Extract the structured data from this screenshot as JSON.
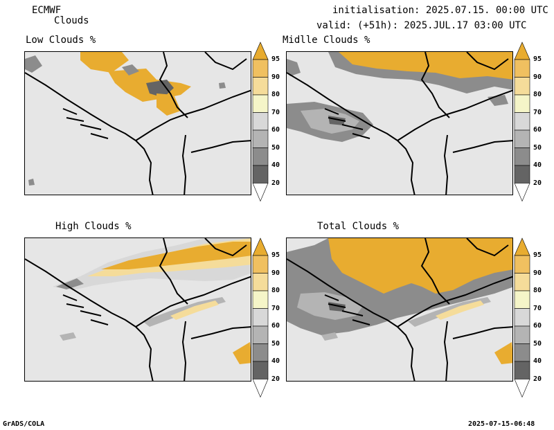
{
  "header": {
    "model": "ECMWF",
    "product": "Clouds",
    "init_line": "initialisation: 2025.07.15. 00:00 UTC",
    "valid_line": "valid: (+51h): 2025.JUL.17 03:00 UTC"
  },
  "panels": [
    {
      "title": "Low Clouds %"
    },
    {
      "title": "Midlle Clouds %"
    },
    {
      "title": "High Clouds %"
    },
    {
      "title": "Total Clouds %"
    }
  ],
  "colorbar": {
    "labels": [
      "95",
      "90",
      "80",
      "70",
      "60",
      "50",
      "40",
      "20"
    ],
    "colors": [
      "#e8ac30",
      "#f0c060",
      "#f5dc9a",
      "#f5f5c8",
      "#d8d8d8",
      "#b4b4b4",
      "#8c8c8c",
      "#646464",
      "#ffffff"
    ]
  },
  "footer": {
    "left": "GrADS/COLA",
    "right": "2025-07-15-06:48"
  }
}
